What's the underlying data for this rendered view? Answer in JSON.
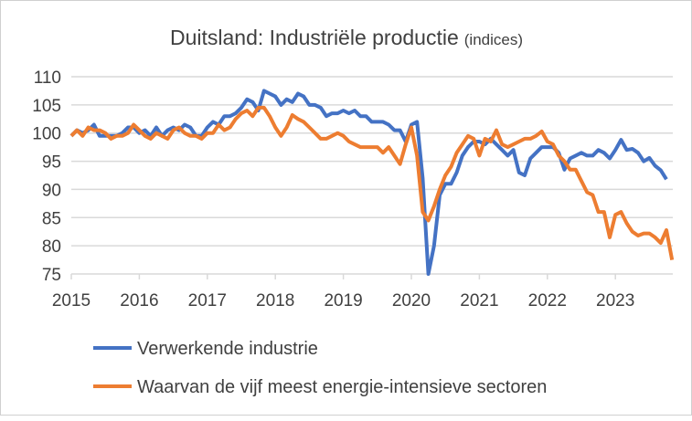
{
  "chart_data": {
    "type": "line",
    "title": "Duitsland: Industriële productie",
    "subtitle": "(indices)",
    "xlabel": "",
    "ylabel": "",
    "x_start": "2015-01",
    "frequency": "monthly",
    "xticks": [
      "2015",
      "2016",
      "2017",
      "2018",
      "2019",
      "2020",
      "2021",
      "2022",
      "2023"
    ],
    "yticks": [
      75,
      80,
      85,
      90,
      95,
      100,
      105,
      110
    ],
    "ylim": [
      75,
      110
    ],
    "grid": "horizontal",
    "legend_position": "bottom",
    "series": [
      {
        "name": "Verwerkende industrie",
        "color": "#4472C4",
        "values": [
          99.5,
          100.5,
          100,
          100.5,
          101.5,
          99.5,
          99.5,
          99.5,
          99.5,
          100,
          101,
          101,
          100,
          100.5,
          99.5,
          101,
          99.5,
          100.5,
          101,
          100.5,
          101.5,
          101,
          99.5,
          99.5,
          101,
          102,
          101.5,
          103,
          103,
          103.5,
          104.5,
          106,
          105.5,
          104,
          107.5,
          107,
          106.5,
          105,
          106,
          105.5,
          107,
          106.5,
          105,
          105,
          104.5,
          103,
          103.5,
          103.5,
          104,
          103.5,
          104,
          103,
          103,
          102,
          102,
          102,
          101.5,
          100.5,
          100.5,
          98.5,
          101.5,
          102,
          92,
          75,
          80,
          89,
          91,
          91,
          93,
          96,
          97.5,
          98.5,
          98.5,
          98,
          99,
          98,
          97,
          96,
          97,
          93,
          92.5,
          95.5,
          96.5,
          97.5,
          97.5,
          97.5,
          96.5,
          93.5,
          95.5,
          96,
          96.5,
          96,
          96,
          97,
          96.5,
          95.5,
          97,
          98.8,
          97,
          97.2,
          96.5,
          95,
          95.6,
          94.2,
          93.4,
          91.8
        ]
      },
      {
        "name": "Waarvan de vijf meest energie-intensieve sectoren",
        "color": "#ED7D31",
        "values": [
          99.5,
          100.5,
          99.5,
          101,
          100.5,
          100.5,
          100,
          99,
          99.5,
          99.5,
          100,
          101.5,
          100.5,
          99.5,
          99,
          100,
          99.5,
          99,
          100.5,
          101,
          100,
          99.5,
          99.5,
          99,
          100,
          100,
          101.5,
          100.5,
          101,
          102.5,
          103.5,
          104,
          103,
          104.5,
          104.5,
          103,
          101,
          99.5,
          101,
          103.2,
          102.5,
          102,
          101,
          100,
          99,
          99,
          99.5,
          100,
          99.5,
          98.5,
          98,
          97.5,
          97.5,
          97.5,
          97.5,
          96.5,
          97.5,
          96,
          94.5,
          98,
          101,
          96,
          86,
          84.5,
          87,
          90,
          92.5,
          94,
          96.5,
          98,
          99.5,
          99,
          96,
          99,
          98.5,
          100.5,
          98,
          97.5,
          98,
          98.5,
          99,
          99,
          99.5,
          100.3,
          98.5,
          98,
          96,
          95,
          93.5,
          93.5,
          91.5,
          89.5,
          89,
          86,
          86,
          81.5,
          85.5,
          86,
          84,
          82.5,
          81.8,
          82.2,
          82.2,
          81.5,
          80.5,
          82.8,
          77.5
        ]
      }
    ]
  }
}
